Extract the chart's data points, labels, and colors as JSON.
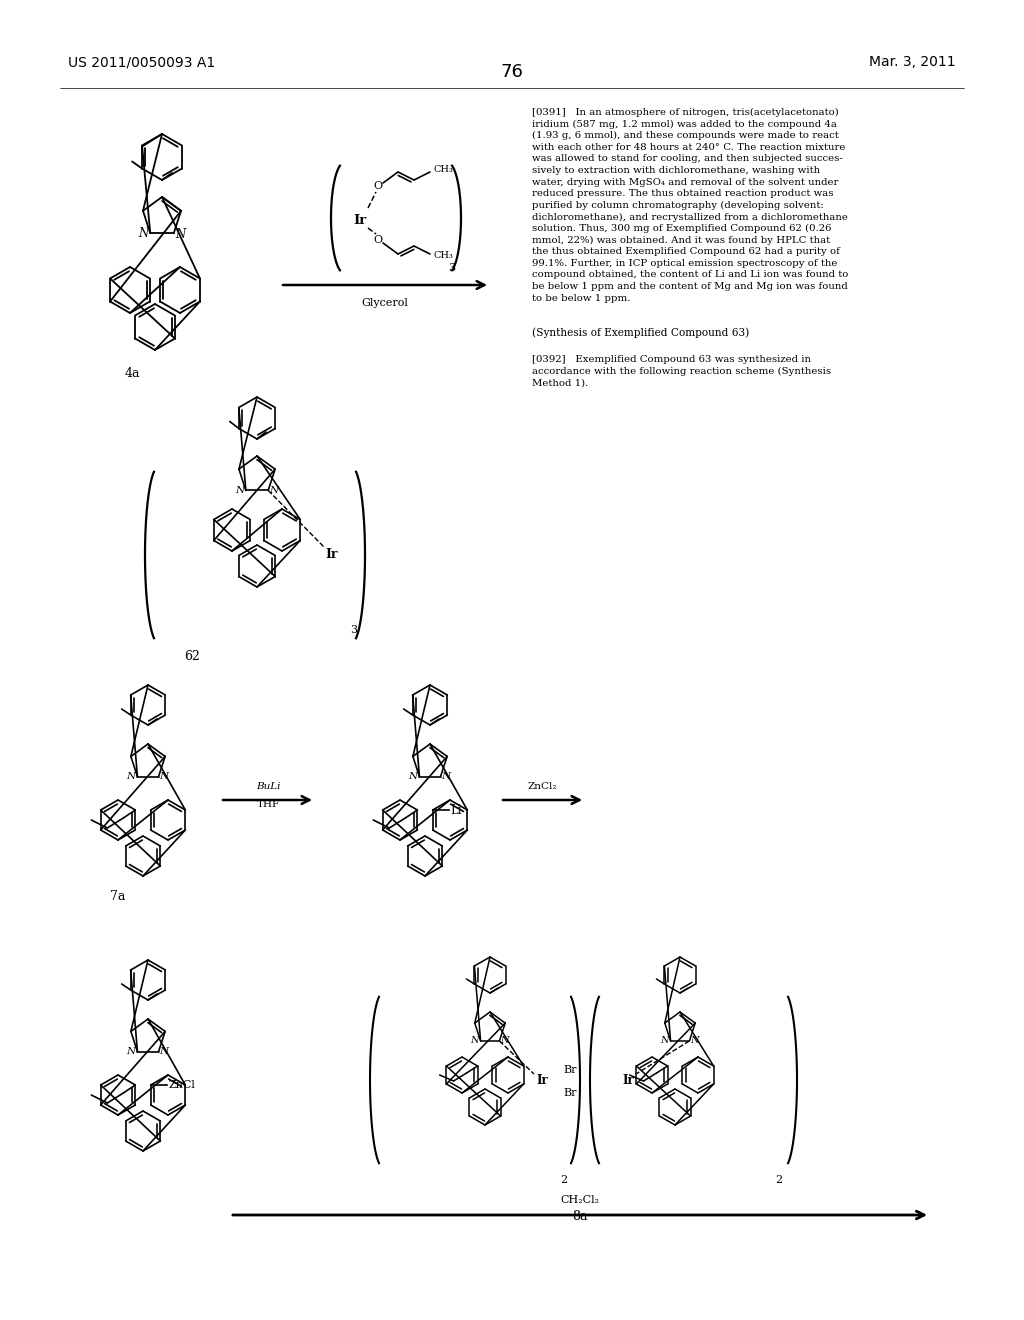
{
  "page_number": "76",
  "header_left": "US 2011/0050093 A1",
  "header_right": "Mar. 3, 2011",
  "background_color": "#ffffff",
  "text_color": "#000000",
  "para_0391_lines": [
    "[0391]   In an atmosphere of nitrogen, tris(acetylacetonato)",
    "iridium (587 mg, 1.2 mmol) was added to the compound 4a",
    "(1.93 g, 6 mmol), and these compounds were made to react",
    "with each other for 48 hours at 240° C. The reaction mixture",
    "was allowed to stand for cooling, and then subjected succes-",
    "sively to extraction with dichloromethane, washing with",
    "water, drying with MgSO₄ and removal of the solvent under",
    "reduced pressure. The thus obtained reaction product was",
    "purified by column chromatography (developing solvent:",
    "dichloromethane), and recrystallized from a dichloromethane",
    "solution. Thus, 300 mg of Exemplified Compound 62 (0.26",
    "mmol, 22%) was obtained. And it was found by HPLC that",
    "the thus obtained Exemplified Compound 62 had a purity of",
    "99.1%. Further, in ICP optical emission spectroscopy of the",
    "compound obtained, the content of Li and Li ion was found to",
    "be below 1 ppm and the content of Mg and Mg ion was found",
    "to be below 1 ppm."
  ],
  "synthesis_header": "(Synthesis of Exemplified Compound 63)",
  "para_0392_lines": [
    "[0392]   Exemplified Compound 63 was synthesized in",
    "accordance with the following reaction scheme (Synthesis",
    "Method 1)."
  ],
  "label_4a": "4a",
  "label_62": "62",
  "label_7a": "7a",
  "label_glycerol": "Glycerol",
  "label_buli": "BuLi",
  "label_thf": "THF",
  "label_zncl2": "ZnCl₂",
  "label_8a": "8a",
  "label_ch2cl2": "CH₂Cl₂",
  "figsize": [
    10.24,
    13.2
  ],
  "dpi": 100
}
